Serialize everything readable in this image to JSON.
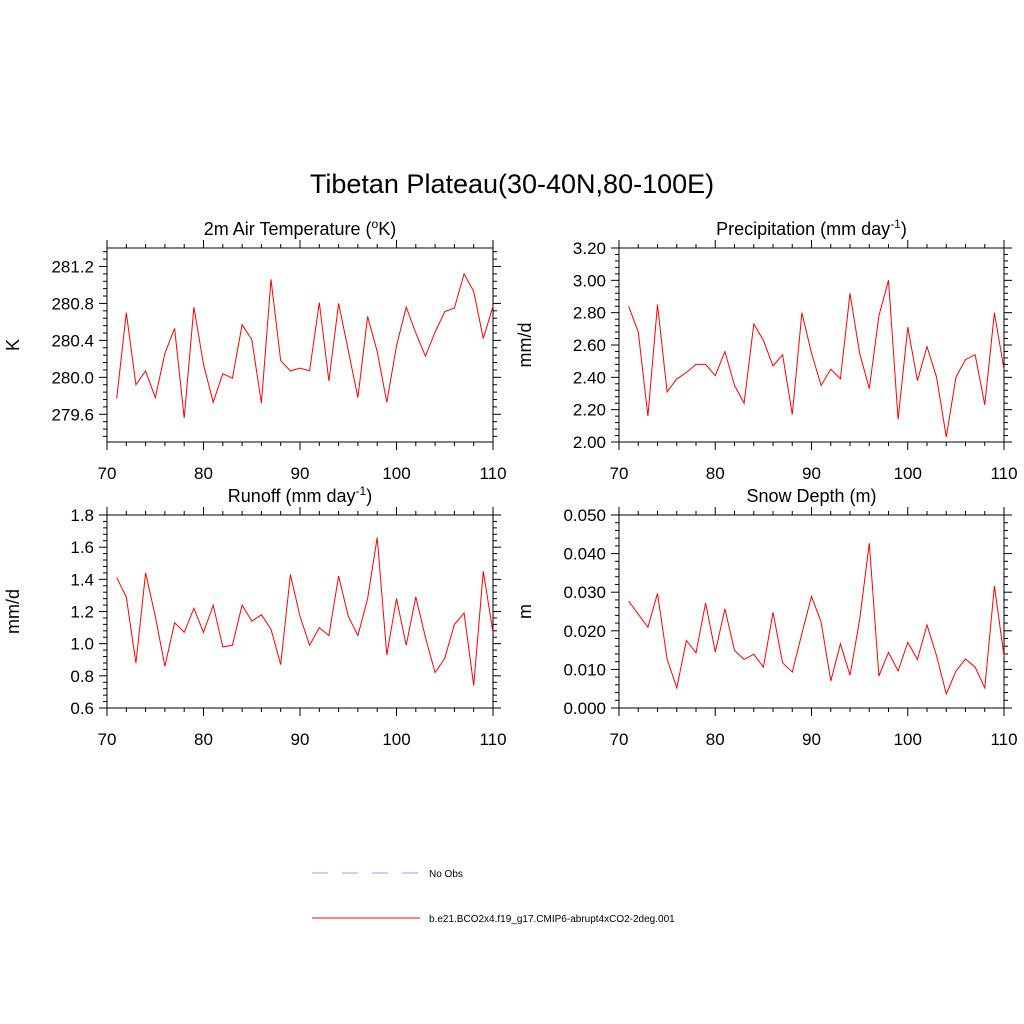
{
  "title": "Tibetan Plateau(30-40N,80-100E)",
  "colors": {
    "model": "#ff0000",
    "obs": "#9999ff",
    "axis": "#000000"
  },
  "legend": {
    "obs_label": "No Obs",
    "model_label": "b.e21.BCO2x4.f19_g17.CMIP6-abrupt4xCO2-2deg.001"
  },
  "chart_data": [
    {
      "type": "line",
      "title": "2m Air Temperature (oK)",
      "title_parts": {
        "before": "2m Air Temperature (",
        "sup": "o",
        "after": "K)"
      },
      "xlabel": "",
      "ylabel": "K",
      "xlim": [
        70,
        110
      ],
      "ylim": [
        279.3,
        281.4
      ],
      "x_ticks": [
        "70",
        "80",
        "90",
        "100",
        "110"
      ],
      "y_ticks": [
        "279.6",
        "280.0",
        "280.4",
        "280.8",
        "281.2"
      ],
      "series": [
        {
          "x": [
            71,
            72,
            73,
            74,
            75,
            76,
            77,
            78,
            79,
            80,
            81,
            82,
            83,
            84,
            85,
            86,
            87,
            88,
            89,
            90,
            91,
            92,
            93,
            94,
            95,
            96,
            97,
            98,
            99,
            100,
            101,
            102,
            103,
            104,
            105,
            106,
            107,
            108,
            109,
            110
          ],
          "values": [
            279.77,
            280.7,
            279.92,
            280.07,
            279.78,
            280.26,
            280.53,
            279.56,
            280.76,
            280.14,
            279.73,
            280.04,
            279.99,
            280.57,
            280.41,
            279.72,
            281.06,
            280.18,
            280.07,
            280.1,
            280.07,
            280.81,
            279.96,
            280.8,
            280.29,
            279.78,
            280.66,
            280.28,
            279.73,
            280.34,
            280.76,
            280.48,
            280.23,
            280.49,
            280.71,
            280.75,
            281.12,
            280.93,
            280.42,
            280.77
          ]
        }
      ]
    },
    {
      "type": "line",
      "title": "Precipitation (mm day-1)",
      "title_parts": {
        "before": "Precipitation (mm day",
        "sup": "-1",
        "after": ")"
      },
      "xlabel": "",
      "ylabel": "mm/d",
      "xlim": [
        70,
        110
      ],
      "ylim": [
        2.0,
        3.2
      ],
      "x_ticks": [
        "70",
        "80",
        "90",
        "100",
        "110"
      ],
      "y_ticks": [
        "2.00",
        "2.20",
        "2.40",
        "2.60",
        "2.80",
        "3.00",
        "3.20"
      ],
      "series": [
        {
          "x": [
            71,
            72,
            73,
            74,
            75,
            76,
            77,
            78,
            79,
            80,
            81,
            82,
            83,
            84,
            85,
            86,
            87,
            88,
            89,
            90,
            91,
            92,
            93,
            94,
            95,
            96,
            97,
            98,
            99,
            100,
            101,
            102,
            103,
            104,
            105,
            106,
            107,
            108,
            109,
            110
          ],
          "values": [
            2.84,
            2.68,
            2.16,
            2.85,
            2.31,
            2.39,
            2.43,
            2.48,
            2.48,
            2.41,
            2.56,
            2.35,
            2.24,
            2.73,
            2.63,
            2.47,
            2.54,
            2.17,
            2.8,
            2.55,
            2.35,
            2.45,
            2.39,
            2.92,
            2.55,
            2.33,
            2.78,
            3.0,
            2.14,
            2.71,
            2.38,
            2.59,
            2.4,
            2.03,
            2.4,
            2.51,
            2.54,
            2.23,
            2.8,
            2.45
          ]
        }
      ]
    },
    {
      "type": "line",
      "title": "Runoff (mm day-1)",
      "title_parts": {
        "before": "Runoff (mm day",
        "sup": "-1",
        "after": ")"
      },
      "xlabel": "",
      "ylabel": "mm/d",
      "xlim": [
        70,
        110
      ],
      "ylim": [
        0.6,
        1.8
      ],
      "x_ticks": [
        "70",
        "80",
        "90",
        "100",
        "110"
      ],
      "y_ticks": [
        "0.6",
        "0.8",
        "1.0",
        "1.2",
        "1.4",
        "1.6",
        "1.8"
      ],
      "series": [
        {
          "x": [
            71,
            72,
            73,
            74,
            75,
            76,
            77,
            78,
            79,
            80,
            81,
            82,
            83,
            84,
            85,
            86,
            87,
            88,
            89,
            90,
            91,
            92,
            93,
            94,
            95,
            96,
            97,
            98,
            99,
            100,
            101,
            102,
            103,
            104,
            105,
            106,
            107,
            108,
            109,
            110
          ],
          "values": [
            1.41,
            1.29,
            0.88,
            1.44,
            1.17,
            0.86,
            1.13,
            1.07,
            1.22,
            1.07,
            1.24,
            0.98,
            0.99,
            1.24,
            1.14,
            1.18,
            1.09,
            0.87,
            1.43,
            1.17,
            0.99,
            1.1,
            1.05,
            1.42,
            1.17,
            1.05,
            1.28,
            1.66,
            0.93,
            1.28,
            0.99,
            1.29,
            1.04,
            0.82,
            0.91,
            1.12,
            1.19,
            0.74,
            1.45,
            1.07
          ]
        }
      ]
    },
    {
      "type": "line",
      "title": "Snow Depth (m)",
      "title_parts": {
        "before": "Snow Depth (m)",
        "sup": "",
        "after": ""
      },
      "xlabel": "",
      "ylabel": "m",
      "xlim": [
        70,
        110
      ],
      "ylim": [
        0.0,
        0.05
      ],
      "x_ticks": [
        "70",
        "80",
        "90",
        "100",
        "110"
      ],
      "y_ticks": [
        "0.000",
        "0.010",
        "0.020",
        "0.030",
        "0.040",
        "0.050"
      ],
      "series": [
        {
          "x": [
            71,
            72,
            73,
            74,
            75,
            76,
            77,
            78,
            79,
            80,
            81,
            82,
            83,
            84,
            85,
            86,
            87,
            88,
            89,
            90,
            91,
            92,
            93,
            94,
            95,
            96,
            97,
            98,
            99,
            100,
            101,
            102,
            103,
            104,
            105,
            106,
            107,
            108,
            109,
            110
          ],
          "values": [
            0.0277,
            0.0243,
            0.0209,
            0.0297,
            0.0127,
            0.0052,
            0.0175,
            0.0143,
            0.0272,
            0.0145,
            0.0257,
            0.0149,
            0.0126,
            0.0139,
            0.0106,
            0.0248,
            0.0117,
            0.0093,
            0.0193,
            0.0289,
            0.0223,
            0.007,
            0.0166,
            0.0085,
            0.0228,
            0.0427,
            0.0083,
            0.0144,
            0.0096,
            0.017,
            0.0126,
            0.0215,
            0.0135,
            0.0036,
            0.0095,
            0.0127,
            0.0106,
            0.0052,
            0.0316,
            0.0135
          ]
        }
      ]
    }
  ]
}
